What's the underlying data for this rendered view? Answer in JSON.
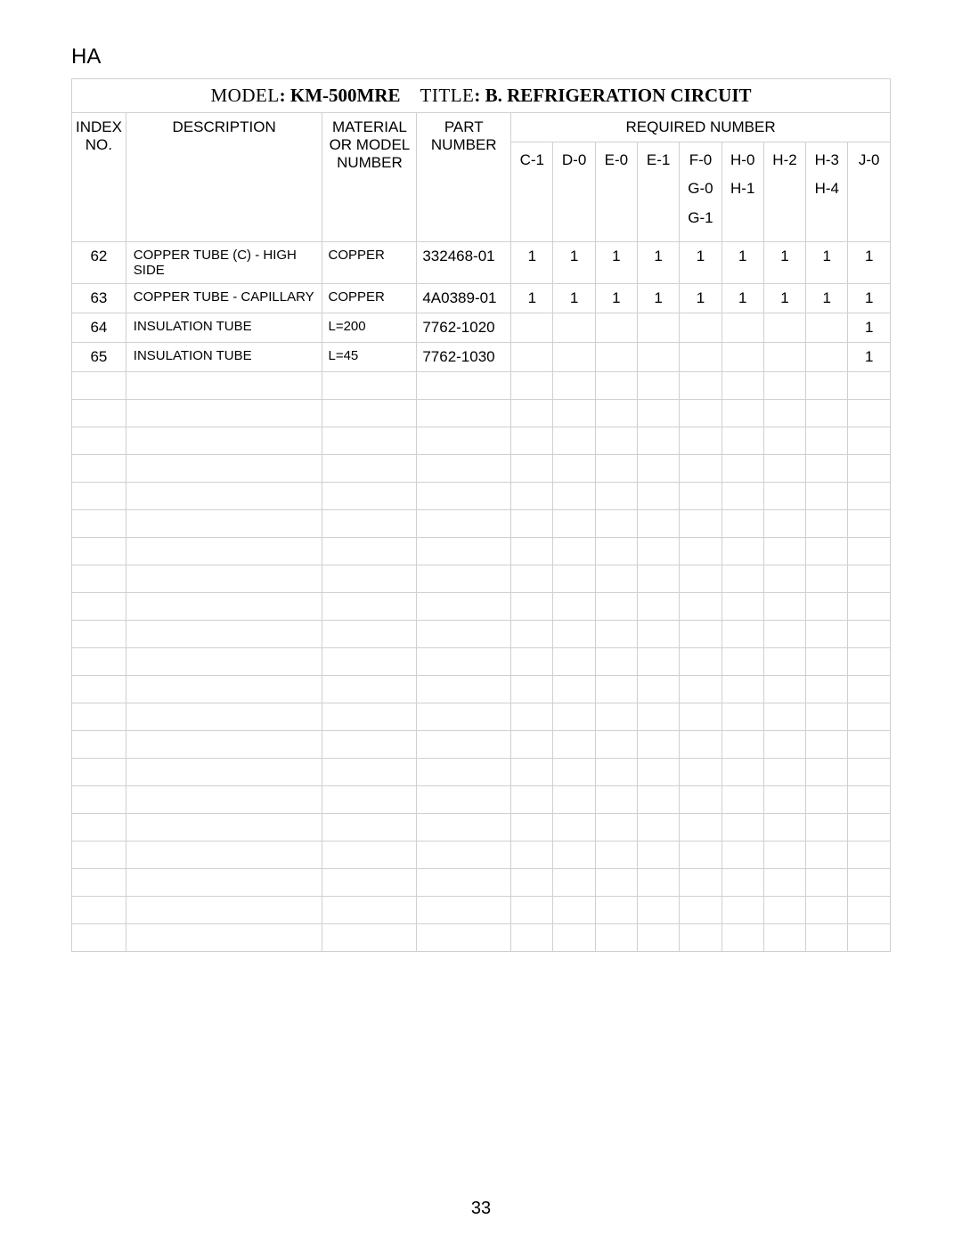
{
  "top_label": "HA",
  "title_row": {
    "model_label": "MODEL",
    "model_value": ": KM-500MRE",
    "title_label": "TITLE",
    "title_value": ": B. REFRIGERATION CIRCUIT"
  },
  "headers": {
    "index": "INDEX NO.",
    "description": "DESCRIPTION",
    "material": "MATERIAL OR MODEL NUMBER",
    "part": "PART NUMBER",
    "required": "REQUIRED NUMBER"
  },
  "req_columns": [
    [
      "C-1"
    ],
    [
      "D-0"
    ],
    [
      "E-0"
    ],
    [
      "E-1"
    ],
    [
      "F-0",
      "G-0",
      "G-1"
    ],
    [
      "H-0",
      "H-1"
    ],
    [
      "H-2"
    ],
    [
      "H-3",
      "H-4"
    ],
    [
      "J-0"
    ]
  ],
  "rows": [
    {
      "index": "62",
      "description": "COPPER TUBE (C) - HIGH SIDE",
      "material": "COPPER",
      "part": "332468-01",
      "req": [
        "1",
        "1",
        "1",
        "1",
        "1",
        "1",
        "1",
        "1",
        "1"
      ]
    },
    {
      "index": "63",
      "description": "COPPER TUBE - CAPILLARY",
      "material": "COPPER",
      "part": "4A0389-01",
      "req": [
        "1",
        "1",
        "1",
        "1",
        "1",
        "1",
        "1",
        "1",
        "1"
      ]
    },
    {
      "index": "64",
      "description": "INSULATION TUBE",
      "material": "L=200",
      "part": "7762-1020",
      "req": [
        "",
        "",
        "",
        "",
        "",
        "",
        "",
        "",
        "1"
      ]
    },
    {
      "index": "65",
      "description": "INSULATION TUBE",
      "material": "L=45",
      "part": "7762-1030",
      "req": [
        "",
        "",
        "",
        "",
        "",
        "",
        "",
        "",
        "1"
      ]
    }
  ],
  "empty_row_count": 21,
  "page_number": "33",
  "colors": {
    "border": "#d0d0d0",
    "text": "#000000",
    "background": "#ffffff"
  },
  "font_sizes": {
    "top_label": 24,
    "title": 21,
    "header": 17,
    "data": 17,
    "description": 15,
    "page_number": 20
  }
}
